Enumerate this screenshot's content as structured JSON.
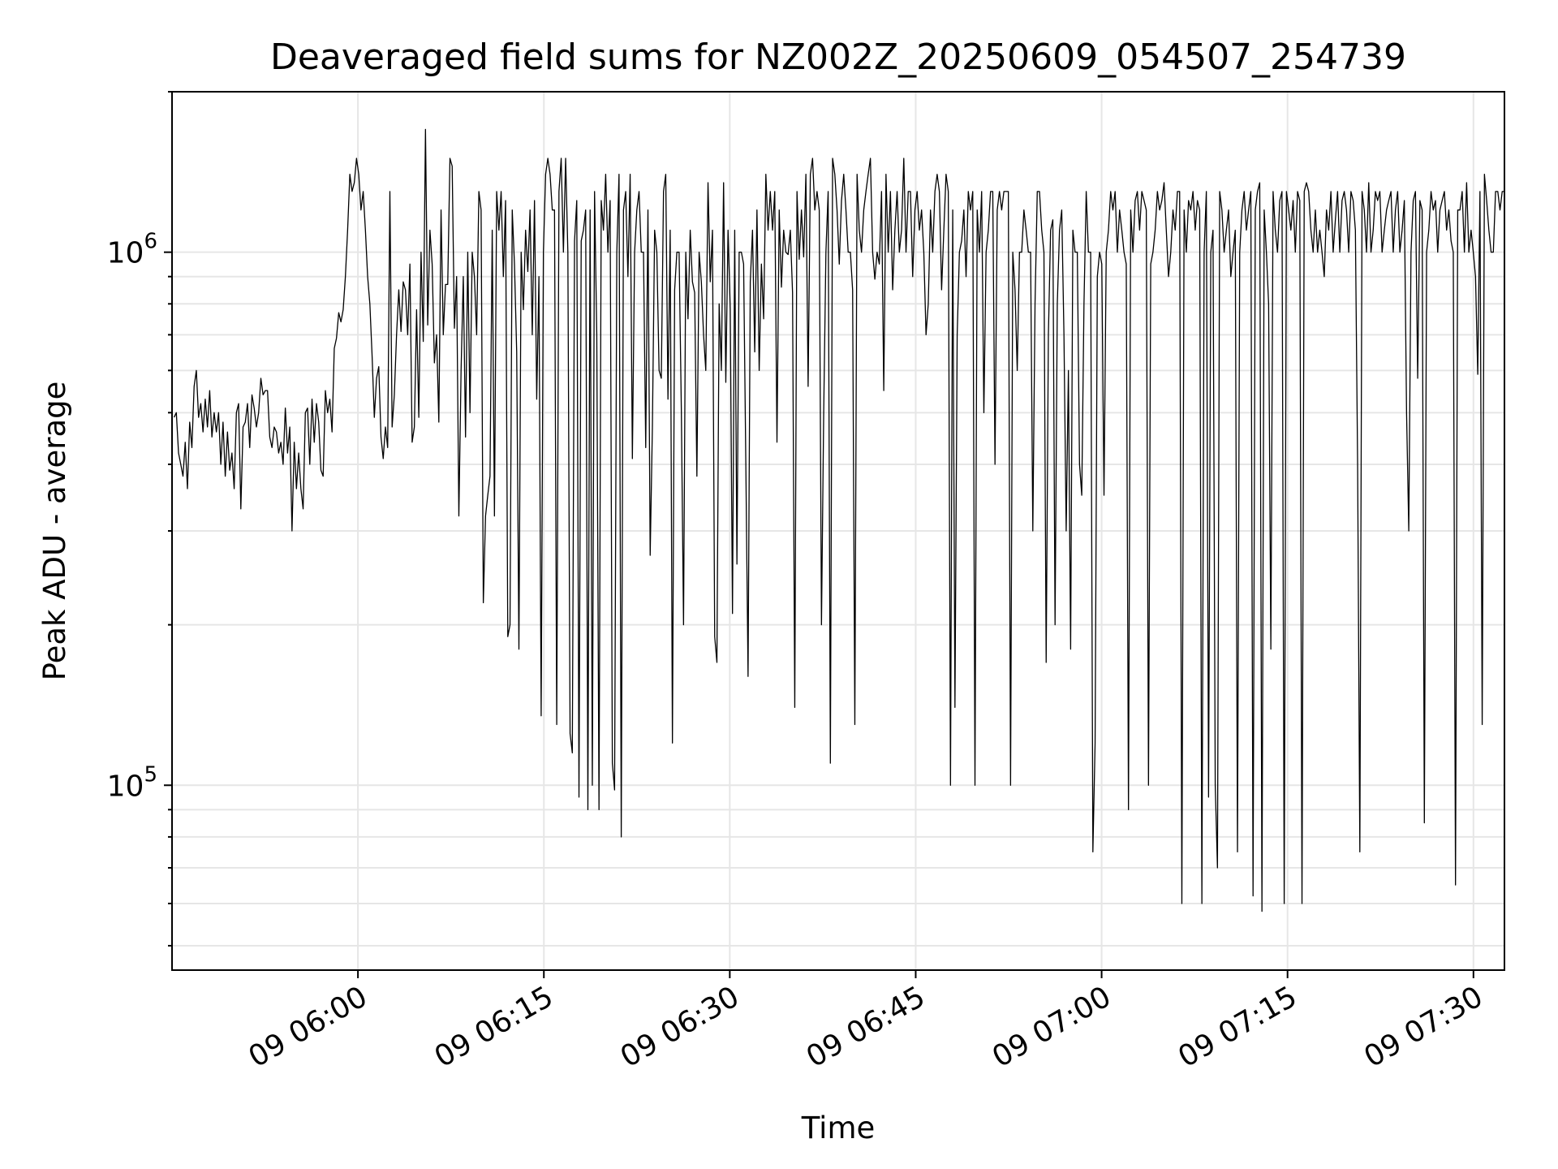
{
  "chart_data": {
    "type": "line",
    "title": "Deaveraged field sums for NZ002Z_20250609_054507_254739",
    "xlabel": "Time",
    "ylabel": "Peak ADU - average",
    "yscale": "log",
    "ylim": [
      45000,
      2000000
    ],
    "xlim": [
      "2025-06-09 05:45:00",
      "2025-06-09 07:32:30"
    ],
    "grid": true,
    "line_color": "#000000",
    "x_ticks": [
      {
        "t": "2025-06-09 06:00",
        "label": "09 06:00"
      },
      {
        "t": "2025-06-09 06:15",
        "label": "09 06:15"
      },
      {
        "t": "2025-06-09 06:30",
        "label": "09 06:30"
      },
      {
        "t": "2025-06-09 06:45",
        "label": "09 06:45"
      },
      {
        "t": "2025-06-09 07:00",
        "label": "09 07:00"
      },
      {
        "t": "2025-06-09 07:15",
        "label": "09 07:15"
      },
      {
        "t": "2025-06-09 07:30",
        "label": "09 07:30"
      }
    ],
    "y_major_ticks": [
      {
        "value": 100000,
        "base": "10",
        "exp": "5"
      },
      {
        "value": 1000000,
        "base": "10",
        "exp": "6"
      }
    ],
    "series": [
      {
        "x_start": "2025-06-09 05:45:10",
        "x_end": "2025-06-09 07:32:30",
        "values": [
          490000,
          500000,
          420000,
          400000,
          380000,
          440000,
          360000,
          480000,
          430000,
          560000,
          600000,
          490000,
          520000,
          460000,
          530000,
          470000,
          550000,
          450000,
          500000,
          460000,
          500000,
          400000,
          480000,
          380000,
          460000,
          390000,
          420000,
          360000,
          500000,
          520000,
          330000,
          470000,
          480000,
          520000,
          430000,
          540000,
          510000,
          470000,
          500000,
          580000,
          540000,
          550000,
          550000,
          450000,
          430000,
          470000,
          460000,
          420000,
          440000,
          400000,
          510000,
          420000,
          470000,
          300000,
          440000,
          360000,
          420000,
          360000,
          330000,
          500000,
          510000,
          400000,
          530000,
          440000,
          520000,
          480000,
          390000,
          380000,
          550000,
          500000,
          530000,
          460000,
          660000,
          690000,
          770000,
          740000,
          780000,
          900000,
          1100000,
          1400000,
          1300000,
          1350000,
          1500000,
          1400000,
          1200000,
          1300000,
          1100000,
          900000,
          800000,
          640000,
          490000,
          580000,
          610000,
          450000,
          410000,
          470000,
          430000,
          1300000,
          470000,
          540000,
          700000,
          850000,
          710000,
          880000,
          850000,
          700000,
          950000,
          440000,
          470000,
          780000,
          490000,
          1000000,
          680000,
          1700000,
          730000,
          1100000,
          950000,
          620000,
          700000,
          480000,
          1200000,
          700000,
          870000,
          870000,
          1500000,
          1450000,
          720000,
          900000,
          320000,
          600000,
          900000,
          450000,
          1000000,
          500000,
          1000000,
          900000,
          700000,
          1300000,
          1200000,
          220000,
          320000,
          350000,
          380000,
          1100000,
          320000,
          1300000,
          1100000,
          1300000,
          900000,
          1250000,
          190000,
          200000,
          1200000,
          950000,
          650000,
          180000,
          1000000,
          780000,
          1100000,
          920000,
          1200000,
          700000,
          1250000,
          530000,
          900000,
          135000,
          1000000,
          1400000,
          1500000,
          1400000,
          1200000,
          1200000,
          130000,
          1300000,
          1500000,
          1000000,
          1500000,
          1000000,
          125000,
          115000,
          1050000,
          1250000,
          95000,
          1050000,
          1100000,
          1200000,
          90000,
          1200000,
          100000,
          1300000,
          700000,
          90000,
          1250000,
          1100000,
          1400000,
          1000000,
          1250000,
          110000,
          98000,
          1000000,
          1400000,
          80000,
          1200000,
          1300000,
          900000,
          1400000,
          410000,
          1000000,
          1200000,
          1300000,
          1000000,
          1000000,
          430000,
          1200000,
          270000,
          470000,
          1100000,
          1000000,
          600000,
          580000,
          1300000,
          1400000,
          530000,
          1100000,
          120000,
          850000,
          1000000,
          1000000,
          510000,
          200000,
          1000000,
          750000,
          1100000,
          880000,
          840000,
          380000,
          1000000,
          880000,
          700000,
          600000,
          1350000,
          880000,
          1100000,
          190000,
          170000,
          800000,
          600000,
          1350000,
          570000,
          1100000,
          780000,
          210000,
          1100000,
          260000,
          1000000,
          1000000,
          950000,
          400000,
          160000,
          880000,
          1100000,
          650000,
          1200000,
          600000,
          950000,
          750000,
          1400000,
          1100000,
          1300000,
          1100000,
          1300000,
          440000,
          1200000,
          860000,
          1100000,
          1000000,
          990000,
          1100000,
          840000,
          140000,
          1300000,
          970000,
          1200000,
          980000,
          1400000,
          560000,
          1400000,
          1500000,
          1200000,
          1300000,
          1200000,
          200000,
          500000,
          1000000,
          1300000,
          110000,
          1500000,
          1400000,
          1200000,
          950000,
          1250000,
          1400000,
          1200000,
          1000000,
          1000000,
          850000,
          130000,
          1400000,
          1100000,
          1000000,
          1200000,
          1300000,
          1400000,
          1500000,
          1000000,
          890000,
          1000000,
          950000,
          1300000,
          550000,
          1400000,
          1000000,
          1300000,
          850000,
          1100000,
          1300000,
          1000000,
          1100000,
          1500000,
          1000000,
          1300000,
          1300000,
          900000,
          1200000,
          1300000,
          1100000,
          1200000,
          1000000,
          700000,
          800000,
          1200000,
          1000000,
          1300000,
          1400000,
          1300000,
          850000,
          1100000,
          1400000,
          1300000,
          100000,
          1200000,
          140000,
          700000,
          1000000,
          1050000,
          1200000,
          900000,
          1300000,
          1200000,
          1300000,
          100000,
          1200000,
          1000000,
          1300000,
          500000,
          1000000,
          1100000,
          1300000,
          1300000,
          400000,
          1200000,
          1300000,
          1200000,
          1300000,
          1300000,
          1300000,
          100000,
          1000000,
          850000,
          600000,
          1000000,
          1000000,
          1200000,
          1100000,
          1000000,
          1000000,
          300000,
          800000,
          1300000,
          1300000,
          1100000,
          1000000,
          170000,
          700000,
          1100000,
          1150000,
          200000,
          800000,
          1100000,
          1200000,
          700000,
          300000,
          600000,
          180000,
          1100000,
          1000000,
          1000000,
          400000,
          350000,
          800000,
          1300000,
          1000000,
          1000000,
          75000,
          120000,
          900000,
          1000000,
          950000,
          350000,
          1000000,
          1100000,
          1300000,
          1200000,
          1300000,
          1000000,
          1200000,
          1100000,
          1000000,
          950000,
          90000,
          1200000,
          1000000,
          1250000,
          1300000,
          1100000,
          1300000,
          1250000,
          1200000,
          100000,
          950000,
          1000000,
          1100000,
          1300000,
          1200000,
          1250000,
          1350000,
          1100000,
          900000,
          1000000,
          1200000,
          1100000,
          1300000,
          1300000,
          60000,
          1200000,
          1000000,
          1250000,
          1200000,
          1300000,
          1100000,
          1250000,
          1200000,
          60000,
          1000000,
          1300000,
          95000,
          1000000,
          1100000,
          100000,
          70000,
          1300000,
          1200000,
          1000000,
          1100000,
          1200000,
          900000,
          1000000,
          1100000,
          75000,
          1000000,
          1200000,
          1300000,
          1100000,
          1200000,
          1300000,
          62000,
          1200000,
          1300000,
          1350000,
          58000,
          1200000,
          1000000,
          800000,
          180000,
          1300000,
          1100000,
          1000000,
          1250000,
          1300000,
          60000,
          1300000,
          1200000,
          1100000,
          1250000,
          1000000,
          1300000,
          1250000,
          60000,
          1300000,
          1350000,
          1300000,
          1100000,
          1000000,
          1200000,
          1000000,
          1100000,
          1000000,
          900000,
          1200000,
          1100000,
          1300000,
          1000000,
          1150000,
          1300000,
          1000000,
          1250000,
          1300000,
          1200000,
          1000000,
          1300000,
          1250000,
          1100000,
          400000,
          75000,
          1300000,
          1200000,
          1000000,
          1350000,
          1000000,
          1100000,
          1300000,
          1250000,
          1300000,
          1000000,
          1100000,
          1200000,
          1250000,
          1300000,
          1000000,
          1200000,
          1300000,
          1000000,
          1100000,
          1250000,
          500000,
          300000,
          1000000,
          1250000,
          1300000,
          580000,
          1250000,
          1200000,
          85000,
          1000000,
          1100000,
          1300000,
          1200000,
          1250000,
          1000000,
          1200000,
          1250000,
          1300000,
          1100000,
          1200000,
          1050000,
          1000000,
          65000,
          1200000,
          1200000,
          1300000,
          1000000,
          1350000,
          1000000,
          1100000,
          1000000,
          900000,
          590000,
          1300000,
          130000,
          1400000,
          1250000,
          1100000,
          1000000,
          1000000,
          1300000,
          1300000,
          1200000,
          1300000,
          1300000
        ]
      }
    ]
  }
}
